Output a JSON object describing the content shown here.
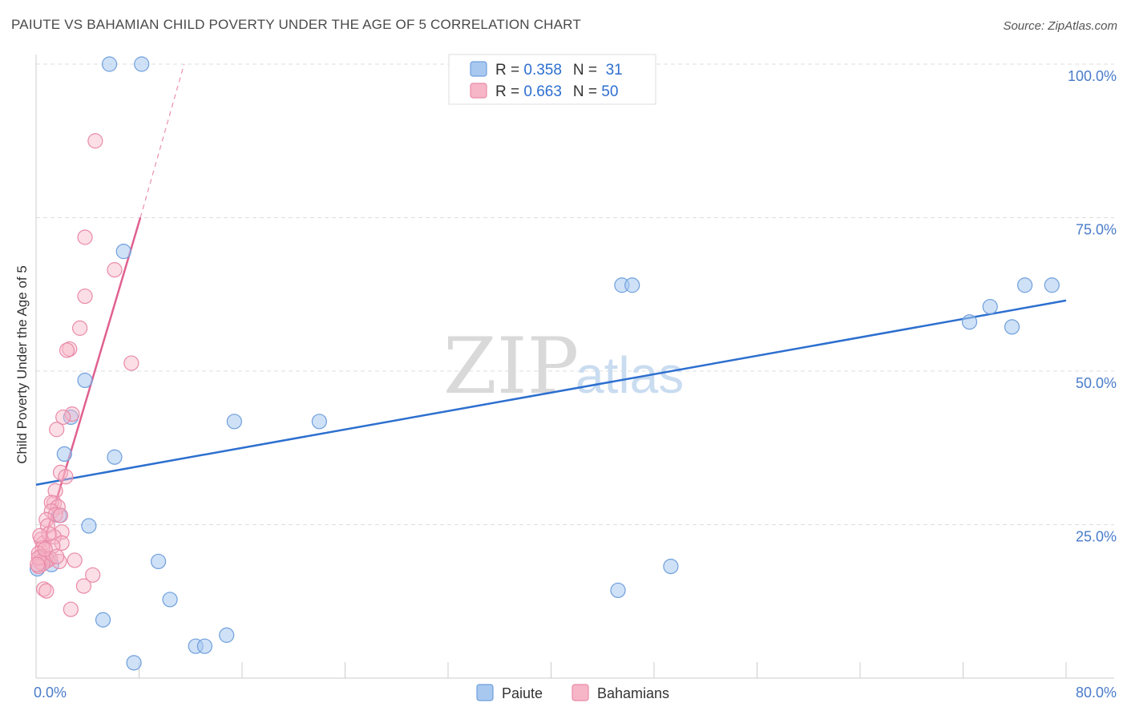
{
  "header": {
    "title": "PAIUTE VS BAHAMIAN CHILD POVERTY UNDER THE AGE OF 5 CORRELATION CHART",
    "source": "Source: ZipAtlas.com"
  },
  "watermark": {
    "zip": "ZIP",
    "atlas": "atlas"
  },
  "colors": {
    "paiute_fill": "#a8c8f0",
    "paiute_stroke": "#6f9fdc",
    "paiute_line": "#2d6fcf",
    "bahamian_fill": "#f7b6c8",
    "bahamian_stroke": "#e98aa8",
    "bahamian_line": "#e0608f",
    "value_text": "#2d6fcf",
    "tick_text": "#4a7cc9",
    "grid": "#dddddd"
  },
  "legend": {
    "rows": [
      {
        "r_label": "R = ",
        "r_value": "0.358",
        "n_label": "N = ",
        "n_value": " 31"
      },
      {
        "r_label": "R = ",
        "r_value": "0.663",
        "n_label": "N = ",
        "n_value": "50"
      }
    ]
  },
  "chart_data": {
    "type": "scatter",
    "title": "PAIUTE VS BAHAMIAN CHILD POVERTY UNDER THE AGE OF 5 CORRELATION CHART",
    "xlabel": "",
    "ylabel": "Child Poverty Under the Age of 5",
    "xlim": [
      0,
      80
    ],
    "ylim": [
      0,
      100
    ],
    "x_tick_labels": [
      "0.0%",
      "80.0%"
    ],
    "y_tick_labels": [
      "100.0%",
      "75.0%",
      "50.0%",
      "25.0%"
    ],
    "y_ticks": [
      100,
      75,
      50,
      25
    ],
    "grid": true,
    "legend_position": "top-center",
    "series": [
      {
        "name": "Paiute",
        "r": 0.358,
        "n": 31,
        "trend": {
          "x0": 0,
          "y0": 31.5,
          "x1": 80,
          "y1": 61.5,
          "dashed_from": null
        },
        "points": [
          [
            5.7,
            100
          ],
          [
            8.2,
            100
          ],
          [
            6.8,
            69.5
          ],
          [
            3.8,
            48.5
          ],
          [
            2.7,
            42.5
          ],
          [
            15.4,
            41.8
          ],
          [
            22.0,
            41.8
          ],
          [
            6.1,
            36.0
          ],
          [
            2.2,
            36.5
          ],
          [
            4.1,
            24.8
          ],
          [
            9.5,
            19.0
          ],
          [
            1.2,
            18.5
          ],
          [
            10.4,
            12.8
          ],
          [
            5.2,
            9.5
          ],
          [
            12.4,
            5.2
          ],
          [
            13.1,
            5.2
          ],
          [
            14.8,
            7.0
          ],
          [
            7.6,
            2.5
          ],
          [
            45.5,
            64.0
          ],
          [
            46.3,
            64.0
          ],
          [
            45.2,
            14.3
          ],
          [
            49.3,
            18.2
          ],
          [
            72.5,
            58.0
          ],
          [
            74.1,
            60.5
          ],
          [
            75.8,
            57.2
          ],
          [
            76.8,
            64.0
          ],
          [
            78.9,
            64.0
          ],
          [
            0.1,
            17.8
          ],
          [
            0.6,
            19.5
          ],
          [
            1.1,
            19.5
          ],
          [
            1.8,
            26.5
          ]
        ]
      },
      {
        "name": "Bahamians",
        "r": 0.663,
        "n": 50,
        "trend": {
          "x0": 0,
          "y0": 17.8,
          "x1": 8.1,
          "y1": 75.0,
          "dashed_to": {
            "x": 11.5,
            "y": 100
          }
        },
        "points": [
          [
            4.6,
            87.5
          ],
          [
            3.8,
            71.8
          ],
          [
            6.1,
            66.5
          ],
          [
            3.8,
            62.2
          ],
          [
            3.4,
            57.0
          ],
          [
            2.6,
            53.6
          ],
          [
            2.4,
            53.4
          ],
          [
            7.4,
            51.3
          ],
          [
            2.8,
            43.0
          ],
          [
            2.1,
            42.5
          ],
          [
            1.6,
            40.5
          ],
          [
            1.9,
            33.5
          ],
          [
            2.3,
            32.8
          ],
          [
            1.5,
            30.5
          ],
          [
            1.4,
            28.5
          ],
          [
            1.2,
            28.6
          ],
          [
            1.7,
            27.9
          ],
          [
            1.2,
            27.2
          ],
          [
            1.5,
            26.6
          ],
          [
            1.9,
            26.5
          ],
          [
            0.8,
            25.8
          ],
          [
            0.9,
            24.8
          ],
          [
            2.0,
            23.8
          ],
          [
            1.4,
            23.0
          ],
          [
            0.4,
            22.6
          ],
          [
            0.6,
            22.0
          ],
          [
            2.0,
            22.0
          ],
          [
            1.3,
            21.5
          ],
          [
            0.5,
            21.2
          ],
          [
            0.2,
            20.3
          ],
          [
            0.4,
            19.8
          ],
          [
            0.7,
            19.4
          ],
          [
            1.1,
            19.5
          ],
          [
            3.0,
            19.2
          ],
          [
            0.9,
            19.2
          ],
          [
            1.8,
            19.0
          ],
          [
            0.3,
            18.9
          ],
          [
            0.5,
            18.6
          ],
          [
            0.2,
            18.2
          ],
          [
            4.4,
            16.8
          ],
          [
            3.7,
            15.0
          ],
          [
            0.6,
            14.5
          ],
          [
            0.8,
            14.2
          ],
          [
            2.7,
            11.2
          ],
          [
            0.2,
            19.6
          ],
          [
            0.1,
            18.5
          ],
          [
            0.7,
            21.0
          ],
          [
            1.0,
            23.5
          ],
          [
            1.6,
            19.8
          ],
          [
            0.3,
            23.2
          ]
        ]
      }
    ]
  },
  "bottom_legend": {
    "items": [
      "Paiute",
      "Bahamians"
    ]
  },
  "y_axis_title": "Child Poverty Under the Age of 5"
}
